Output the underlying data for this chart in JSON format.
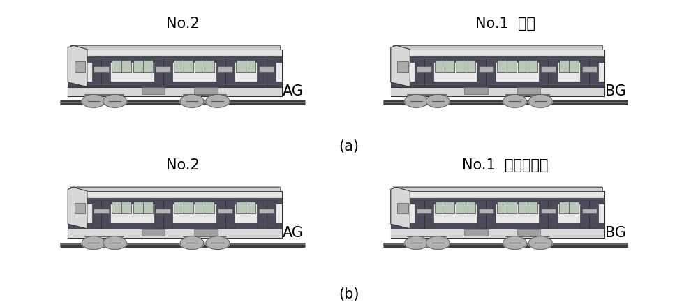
{
  "title_a": "(a)",
  "title_b": "(b)",
  "label_no2_a": "No.2",
  "label_no1_a": "No.1  日检",
  "label_no2_b": "No.2",
  "label_no1_b": "No.1  洗车、日检",
  "label_ag_a": "AG",
  "label_bg_a": "BG",
  "label_ag_b": "AG",
  "label_bg_b": "BG",
  "bg_color": "#ffffff",
  "font_size_label": 15,
  "font_size_track": 15,
  "font_size_caption": 15
}
